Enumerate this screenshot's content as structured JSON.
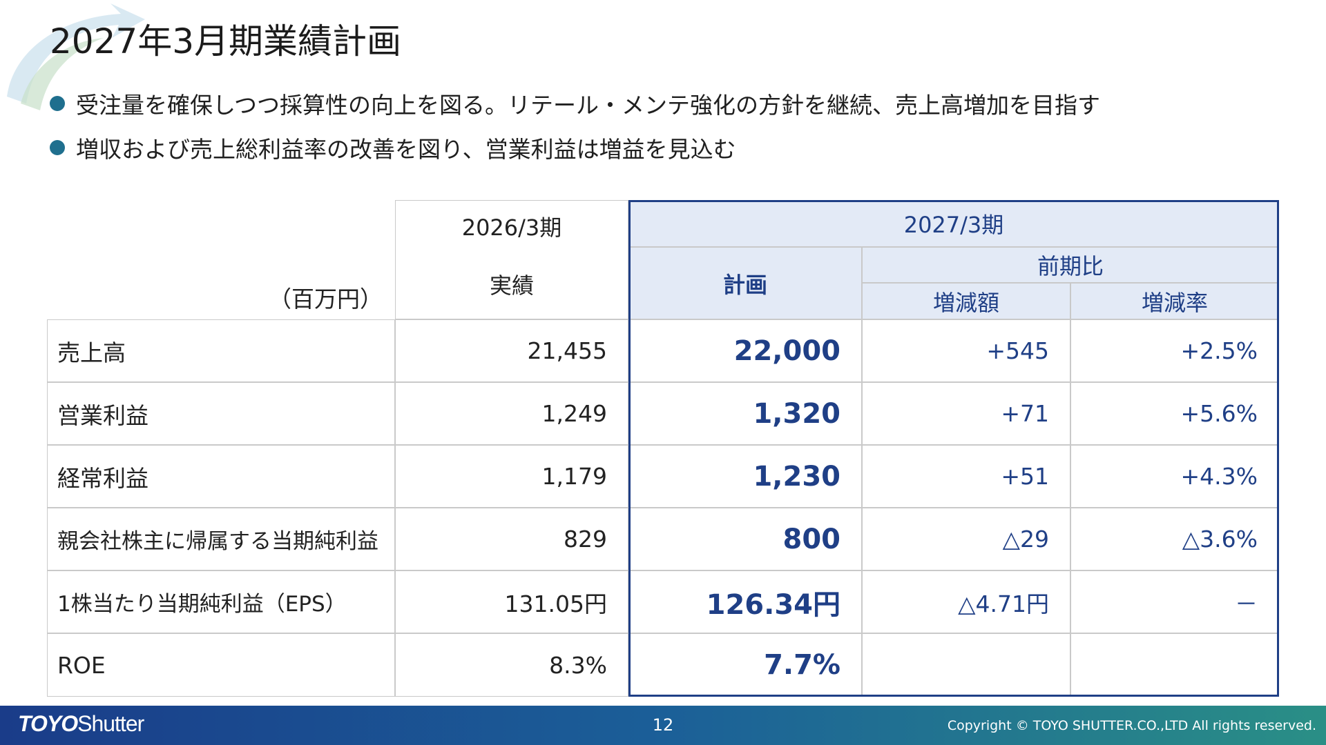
{
  "title": "2027年3月期業績計画",
  "bullets": [
    "受注量を確保しつつ採算性の向上を図る。リテール・メンテ強化の方針を継続、売上高増加を目指す",
    "増収および売上総利益率の改善を図り、営業利益は増益を見込む"
  ],
  "table": {
    "unit": "（百万円）",
    "prev_period": "2026/3期",
    "prev_sub": "実績",
    "curr_period": "2027/3期",
    "plan_label": "計画",
    "yoy_label": "前期比",
    "change_label": "増減額",
    "rate_label": "増減率",
    "rows": [
      {
        "label": "売上高",
        "actual": "21,455",
        "plan": "22,000",
        "change": "+545",
        "rate": "+2.5%"
      },
      {
        "label": "営業利益",
        "actual": "1,249",
        "plan": "1,320",
        "change": "+71",
        "rate": "+5.6%"
      },
      {
        "label": "経常利益",
        "actual": "1,179",
        "plan": "1,230",
        "change": "+51",
        "rate": "+4.3%"
      },
      {
        "label": "親会社株主に帰属する当期純利益",
        "actual": "829",
        "plan": "800",
        "change": "△29",
        "rate": "△3.6%"
      },
      {
        "label": "1株当たり当期純利益（EPS）",
        "actual": "131.05円",
        "plan": "126.34円",
        "change": "△4.71円",
        "rate": "－"
      },
      {
        "label": "ROE",
        "actual": "8.3%",
        "plan": "7.7%",
        "change": "",
        "rate": ""
      }
    ]
  },
  "footer": {
    "logo_bold": "TOYO",
    "logo_rest": "Shutter",
    "page": "12",
    "copyright": "Copyright © TOYO SHUTTER.CO.,LTD All rights reserved."
  },
  "colors": {
    "accent": "#1f3f86",
    "header_fill": "#e3eaf6",
    "bullet": "#1f6f8e",
    "footer_start": "#1a3c89",
    "footer_end": "#2a8f86"
  }
}
